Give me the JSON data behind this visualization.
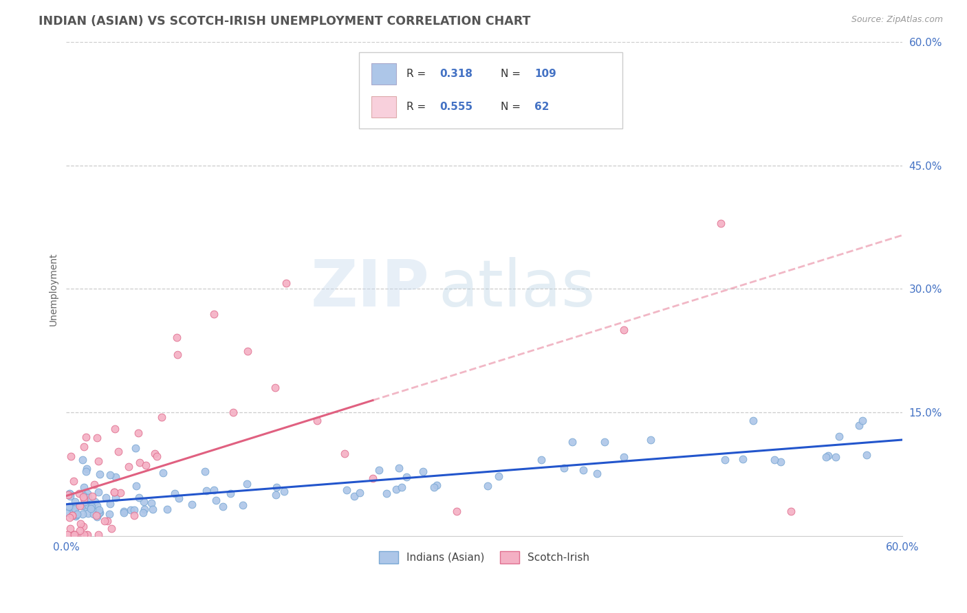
{
  "title": "INDIAN (ASIAN) VS SCOTCH-IRISH UNEMPLOYMENT CORRELATION CHART",
  "source_text": "Source: ZipAtlas.com",
  "ylabel": "Unemployment",
  "xlim": [
    0.0,
    0.6
  ],
  "ylim": [
    0.0,
    0.6
  ],
  "xtick_labels": [
    "0.0%",
    "60.0%"
  ],
  "ytick_labels": [
    "15.0%",
    "30.0%",
    "45.0%",
    "60.0%"
  ],
  "ytick_values": [
    0.15,
    0.3,
    0.45,
    0.6
  ],
  "gridline_color": "#cccccc",
  "background_color": "#ffffff",
  "title_color": "#555555",
  "axis_color": "#4472c4",
  "scatter1_color": "#adc6e8",
  "scatter1_edge": "#7aa8d4",
  "scatter2_color": "#f4b0c4",
  "scatter2_edge": "#e07090",
  "line1_color": "#2255cc",
  "line2_color": "#e06080",
  "watermark_zip": "ZIP",
  "watermark_atlas": "atlas",
  "legend_box_color": "#e8f0f8",
  "legend_pink_color": "#f8d0dc",
  "seed": 77
}
